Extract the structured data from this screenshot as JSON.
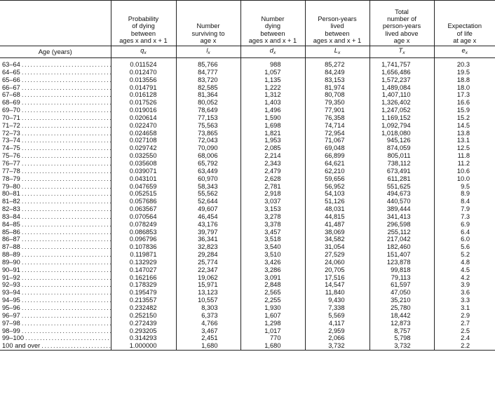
{
  "headers": {
    "age": "Age (years)",
    "q": [
      "Probability",
      "of dying",
      "between",
      "ages x and x + 1"
    ],
    "l": [
      "Number",
      "surviving to",
      "age x"
    ],
    "d": [
      "Number",
      "dying",
      "between",
      "ages x and x + 1"
    ],
    "L": [
      "Person-years",
      "lived",
      "between",
      "ages x and x + 1"
    ],
    "T": [
      "Total",
      "number of",
      "person-years",
      "lived above",
      "age x"
    ],
    "e": [
      "Expectation",
      "of life",
      "at age x"
    ]
  },
  "symbols": {
    "q": {
      "base": "q",
      "sub": "x"
    },
    "l": {
      "base": "l",
      "sub": "x"
    },
    "d": {
      "base": "d",
      "sub": "x"
    },
    "L": {
      "base": "L",
      "sub": "x"
    },
    "T": {
      "base": "T",
      "sub": "x"
    },
    "e": {
      "base": "e",
      "sub": "x"
    }
  },
  "rows": [
    {
      "age": "63–64",
      "q": "0.011524",
      "l": "85,766",
      "d": "988",
      "L": "85,272",
      "T": "1,741,757",
      "e": "20.3"
    },
    {
      "age": "64–65",
      "q": "0.012470",
      "l": "84,777",
      "d": "1,057",
      "L": "84,249",
      "T": "1,656,486",
      "e": "19.5"
    },
    {
      "age": "65–66",
      "q": "0.013556",
      "l": "83,720",
      "d": "1,135",
      "L": "83,153",
      "T": "1,572,237",
      "e": "18.8"
    },
    {
      "age": "66–67",
      "q": "0.014791",
      "l": "82,585",
      "d": "1,222",
      "L": "81,974",
      "T": "1,489,084",
      "e": "18.0"
    },
    {
      "age": "67–68",
      "q": "0.016128",
      "l": "81,364",
      "d": "1,312",
      "L": "80,708",
      "T": "1,407,110",
      "e": "17.3"
    },
    {
      "age": "68–69",
      "q": "0.017526",
      "l": "80,052",
      "d": "1,403",
      "L": "79,350",
      "T": "1,326,402",
      "e": "16.6"
    },
    {
      "age": "69–70",
      "q": "0.019016",
      "l": "78,649",
      "d": "1,496",
      "L": "77,901",
      "T": "1,247,052",
      "e": "15.9"
    },
    {
      "age": "70–71",
      "q": "0.020614",
      "l": "77,153",
      "d": "1,590",
      "L": "76,358",
      "T": "1,169,152",
      "e": "15.2"
    },
    {
      "age": "71–72",
      "q": "0.022470",
      "l": "75,563",
      "d": "1,698",
      "L": "74,714",
      "T": "1,092,794",
      "e": "14.5"
    },
    {
      "age": "72–73",
      "q": "0.024658",
      "l": "73,865",
      "d": "1,821",
      "L": "72,954",
      "T": "1,018,080",
      "e": "13.8"
    },
    {
      "age": "73–74",
      "q": "0.027108",
      "l": "72,043",
      "d": "1,953",
      "L": "71,067",
      "T": "945,126",
      "e": "13.1"
    },
    {
      "age": "74–75",
      "q": "0.029742",
      "l": "70,090",
      "d": "2,085",
      "L": "69,048",
      "T": "874,059",
      "e": "12.5"
    },
    {
      "age": "75–76",
      "q": "0.032550",
      "l": "68,006",
      "d": "2,214",
      "L": "66,899",
      "T": "805,011",
      "e": "11.8"
    },
    {
      "age": "76–77",
      "q": "0.035608",
      "l": "65,792",
      "d": "2,343",
      "L": "64,621",
      "T": "738,112",
      "e": "11.2"
    },
    {
      "age": "77–78",
      "q": "0.039071",
      "l": "63,449",
      "d": "2,479",
      "L": "62,210",
      "T": "673,491",
      "e": "10.6"
    },
    {
      "age": "78–79",
      "q": "0.043101",
      "l": "60,970",
      "d": "2,628",
      "L": "59,656",
      "T": "611,281",
      "e": "10.0"
    },
    {
      "age": "79–80",
      "q": "0.047659",
      "l": "58,343",
      "d": "2,781",
      "L": "56,952",
      "T": "551,625",
      "e": "9.5"
    },
    {
      "age": "80–81",
      "q": "0.052515",
      "l": "55,562",
      "d": "2,918",
      "L": "54,103",
      "T": "494,673",
      "e": "8.9"
    },
    {
      "age": "81–82",
      "q": "0.057686",
      "l": "52,644",
      "d": "3,037",
      "L": "51,126",
      "T": "440,570",
      "e": "8.4"
    },
    {
      "age": "82–83",
      "q": "0.063567",
      "l": "49,607",
      "d": "3,153",
      "L": "48,031",
      "T": "389,444",
      "e": "7.9"
    },
    {
      "age": "83–84",
      "q": "0.070564",
      "l": "46,454",
      "d": "3,278",
      "L": "44,815",
      "T": "341,413",
      "e": "7.3"
    },
    {
      "age": "84–85",
      "q": "0.078249",
      "l": "43,176",
      "d": "3,378",
      "L": "41,487",
      "T": "296,598",
      "e": "6.9"
    },
    {
      "age": "85–86",
      "q": "0.086853",
      "l": "39,797",
      "d": "3,457",
      "L": "38,069",
      "T": "255,112",
      "e": "6.4"
    },
    {
      "age": "86–87",
      "q": "0.096796",
      "l": "36,341",
      "d": "3,518",
      "L": "34,582",
      "T": "217,042",
      "e": "6.0"
    },
    {
      "age": "87–88",
      "q": "0.107836",
      "l": "32,823",
      "d": "3,540",
      "L": "31,054",
      "T": "182,460",
      "e": "5.6"
    },
    {
      "age": "88–89",
      "q": "0.119871",
      "l": "29,284",
      "d": "3,510",
      "L": "27,529",
      "T": "151,407",
      "e": "5.2"
    },
    {
      "age": "89–90",
      "q": "0.132929",
      "l": "25,774",
      "d": "3,426",
      "L": "24,060",
      "T": "123,878",
      "e": "4.8"
    },
    {
      "age": "90–91",
      "q": "0.147027",
      "l": "22,347",
      "d": "3,286",
      "L": "20,705",
      "T": "99,818",
      "e": "4.5"
    },
    {
      "age": "91–92",
      "q": "0.162166",
      "l": "19,062",
      "d": "3,091",
      "L": "17,516",
      "T": "79,113",
      "e": "4.2"
    },
    {
      "age": "92–93",
      "q": "0.178329",
      "l": "15,971",
      "d": "2,848",
      "L": "14,547",
      "T": "61,597",
      "e": "3.9"
    },
    {
      "age": "93–94",
      "q": "0.195479",
      "l": "13,123",
      "d": "2,565",
      "L": "11,840",
      "T": "47,050",
      "e": "3.6"
    },
    {
      "age": "94–95",
      "q": "0.213557",
      "l": "10,557",
      "d": "2,255",
      "L": "9,430",
      "T": "35,210",
      "e": "3.3"
    },
    {
      "age": "95–96",
      "q": "0.232482",
      "l": "8,303",
      "d": "1,930",
      "L": "7,338",
      "T": "25,780",
      "e": "3.1"
    },
    {
      "age": "96–97",
      "q": "0.252150",
      "l": "6,373",
      "d": "1,607",
      "L": "5,569",
      "T": "18,442",
      "e": "2.9"
    },
    {
      "age": "97–98",
      "q": "0.272439",
      "l": "4,766",
      "d": "1,298",
      "L": "4,117",
      "T": "12,873",
      "e": "2.7"
    },
    {
      "age": "98–99",
      "q": "0.293205",
      "l": "3,467",
      "d": "1,017",
      "L": "2,959",
      "T": "8,757",
      "e": "2.5"
    },
    {
      "age": "99–100",
      "q": "0.314293",
      "l": "2,451",
      "d": "770",
      "L": "2,066",
      "T": "5,798",
      "e": "2.4"
    },
    {
      "age": "100 and over",
      "q": "1.000000",
      "l": "1,680",
      "d": "1,680",
      "L": "3,732",
      "T": "3,732",
      "e": "2.2"
    }
  ]
}
